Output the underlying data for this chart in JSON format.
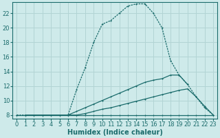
{
  "bg_color": "#ceeaea",
  "grid_color": "#b2d4d4",
  "line_color": "#1a6b6b",
  "xlabel": "Humidex (Indice chaleur)",
  "xlabel_fontsize": 7,
  "tick_fontsize": 6,
  "ylim": [
    7.5,
    23.5
  ],
  "xlim": [
    -0.5,
    23.5
  ],
  "yticks": [
    8,
    10,
    12,
    14,
    16,
    18,
    20,
    22
  ],
  "xticks": [
    0,
    1,
    2,
    3,
    4,
    5,
    6,
    7,
    8,
    9,
    10,
    11,
    12,
    13,
    14,
    15,
    16,
    17,
    18,
    19,
    20,
    21,
    22,
    23
  ],
  "curve1_x": [
    0,
    1,
    2,
    3,
    4,
    5,
    6,
    7,
    8,
    9,
    10,
    11,
    12,
    13,
    14,
    15,
    16,
    17,
    18,
    19,
    20,
    21,
    22,
    23
  ],
  "curve1_y": [
    8.0,
    8.0,
    8.0,
    8.0,
    8.0,
    8.0,
    8.0,
    11.5,
    14.5,
    18.0,
    20.5,
    21.0,
    22.0,
    23.0,
    23.3,
    23.3,
    22.0,
    20.0,
    15.5,
    13.5,
    12.2,
    10.5,
    9.0,
    8.0
  ],
  "curve2_x": [
    1,
    2,
    3,
    4,
    5,
    6,
    7,
    8,
    9,
    10,
    11,
    12,
    13,
    14,
    15,
    16,
    17,
    18,
    19,
    20
  ],
  "curve2_y": [
    8.0,
    8.0,
    8.0,
    8.0,
    8.0,
    8.0,
    8.5,
    9.0,
    9.5,
    10.0,
    10.5,
    11.0,
    11.5,
    12.0,
    12.5,
    12.8,
    13.0,
    13.5,
    13.5,
    12.2
  ],
  "curve3_x": [
    0,
    1,
    2,
    3,
    4,
    5,
    6,
    7,
    8,
    9,
    10,
    11,
    12,
    13,
    14,
    15,
    16,
    17,
    18,
    19,
    20,
    21,
    22,
    23
  ],
  "curve3_y": [
    8.0,
    8.0,
    8.0,
    8.0,
    8.0,
    8.0,
    8.0,
    8.0,
    8.0,
    8.0,
    8.0,
    8.0,
    8.0,
    8.0,
    8.0,
    8.0,
    8.0,
    8.0,
    8.0,
    8.0,
    8.0,
    8.0,
    8.0,
    8.0
  ],
  "curve4_x": [
    1,
    2,
    3,
    4,
    5,
    6,
    7,
    8,
    9,
    10,
    11,
    12,
    13,
    14,
    15,
    16,
    17,
    18,
    19,
    20,
    21,
    22,
    23
  ],
  "curve4_y": [
    8.0,
    8.0,
    8.0,
    8.0,
    8.0,
    8.0,
    8.0,
    8.2,
    8.5,
    8.8,
    9.0,
    9.3,
    9.6,
    9.9,
    10.2,
    10.5,
    10.8,
    11.1,
    11.4,
    11.6,
    10.5,
    9.2,
    8.0
  ]
}
